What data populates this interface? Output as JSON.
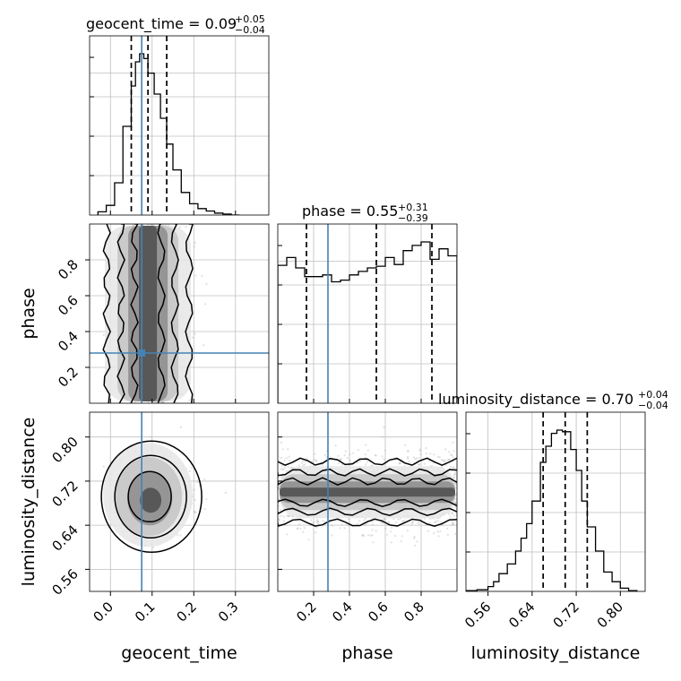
{
  "chart_data": {
    "type": "corner",
    "parameters": [
      "geocent_time",
      "phase",
      "luminosity_distance"
    ],
    "truths": {
      "geocent_time": 0.075,
      "phase": 0.28,
      "luminosity_distance": null
    },
    "titles": [
      {
        "param": "geocent_time",
        "lhs": "geocent_time = 0.09",
        "plus": "+0.05",
        "minus": "−0.04"
      },
      {
        "param": "phase",
        "lhs": "phase = 0.55",
        "plus": "+0.31",
        "minus": "−0.39"
      },
      {
        "param": "luminosity_distance",
        "lhs": "luminosity_distance = 0.70",
        "plus": "+0.04",
        "minus": "−0.04"
      }
    ],
    "axes": {
      "geocent_time": {
        "range": [
          -0.05,
          0.38
        ],
        "ticks": [
          0.0,
          0.1,
          0.2,
          0.3
        ],
        "tick_labels": [
          "0.0",
          "0.1",
          "0.2",
          "0.3"
        ]
      },
      "phase": {
        "range": [
          0.0,
          1.0
        ],
        "ticks": [
          0.2,
          0.4,
          0.6,
          0.8
        ],
        "tick_labels": [
          "0.2",
          "0.4",
          "0.6",
          "0.8"
        ]
      },
      "luminosity_distance": {
        "range": [
          0.52,
          0.845
        ],
        "ticks": [
          0.56,
          0.64,
          0.72,
          0.8
        ],
        "tick_labels": [
          "0.56",
          "0.64",
          "0.72",
          "0.80"
        ]
      }
    },
    "xlabels": [
      "geocent_time",
      "phase",
      "luminosity_distance"
    ],
    "ylabels": [
      "phase",
      "luminosity_distance"
    ],
    "quantiles": {
      "geocent_time": [
        0.05,
        0.09,
        0.135
      ],
      "phase": [
        0.16,
        0.55,
        0.86
      ],
      "luminosity_distance": [
        0.66,
        0.7,
        0.74
      ]
    },
    "histograms": {
      "geocent_time": {
        "edges": [
          -0.03,
          -0.01,
          0.01,
          0.03,
          0.05,
          0.06,
          0.07,
          0.08,
          0.09,
          0.105,
          0.12,
          0.135,
          0.15,
          0.17,
          0.19,
          0.21,
          0.23,
          0.25,
          0.27,
          0.29,
          0.31
        ],
        "counts": [
          0.02,
          0.06,
          0.2,
          0.55,
          0.8,
          0.95,
          1.0,
          0.97,
          0.88,
          0.75,
          0.6,
          0.44,
          0.28,
          0.14,
          0.07,
          0.04,
          0.025,
          0.012,
          0.006,
          0.0
        ]
      },
      "phase": {
        "edges": [
          0.0,
          0.05,
          0.1,
          0.15,
          0.2,
          0.25,
          0.3,
          0.35,
          0.4,
          0.45,
          0.5,
          0.55,
          0.6,
          0.65,
          0.7,
          0.75,
          0.8,
          0.85,
          0.9,
          0.95,
          1.0
        ],
        "counts": [
          0.795,
          0.84,
          0.78,
          0.73,
          0.73,
          0.74,
          0.7,
          0.71,
          0.74,
          0.76,
          0.78,
          0.79,
          0.84,
          0.8,
          0.88,
          0.91,
          0.93,
          0.83,
          0.89,
          0.85
        ]
      },
      "luminosity_distance": {
        "edges": [
          0.52,
          0.54,
          0.56,
          0.57,
          0.58,
          0.595,
          0.61,
          0.62,
          0.63,
          0.64,
          0.655,
          0.665,
          0.675,
          0.685,
          0.695,
          0.71,
          0.72,
          0.73,
          0.74,
          0.755,
          0.77,
          0.785,
          0.8,
          0.815,
          0.83
        ],
        "counts": [
          0.005,
          0.01,
          0.03,
          0.06,
          0.11,
          0.17,
          0.25,
          0.33,
          0.42,
          0.56,
          0.8,
          0.9,
          0.98,
          1.0,
          0.99,
          0.88,
          0.75,
          0.56,
          0.4,
          0.25,
          0.12,
          0.06,
          0.02,
          0.005
        ]
      }
    },
    "colors": {
      "truth": "#4682b4",
      "hist": "#000000",
      "contour": "#000000",
      "grid": "#bfbfbf",
      "points": "#aaaaaa"
    },
    "grid": true
  }
}
